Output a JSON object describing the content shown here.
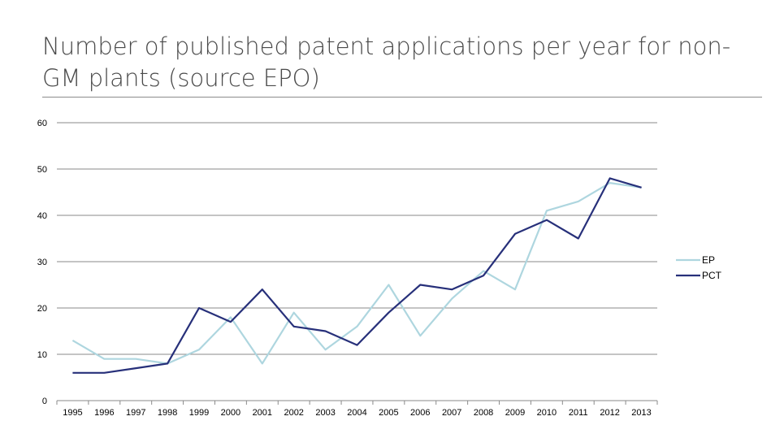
{
  "slide": {
    "title": "Number of published patent applications per year for non-GM plants (source EPO)"
  },
  "chart_data": {
    "type": "line",
    "title": "",
    "xlabel": "",
    "ylabel": "",
    "categories": [
      "1995",
      "1996",
      "1997",
      "1998",
      "1999",
      "2000",
      "2001",
      "2002",
      "2003",
      "2004",
      "2005",
      "2006",
      "2007",
      "2008",
      "2009",
      "2010",
      "2011",
      "2012",
      "2013"
    ],
    "ylim": [
      0,
      60
    ],
    "yticks": [
      0,
      10,
      20,
      30,
      40,
      50,
      60
    ],
    "grid": true,
    "legend_position": "right",
    "series": [
      {
        "name": "EP",
        "color": "#aed6df",
        "values": [
          13,
          9,
          9,
          8,
          11,
          18,
          8,
          19,
          11,
          16,
          25,
          14,
          22,
          28,
          24,
          41,
          43,
          47,
          46
        ]
      },
      {
        "name": "PCT",
        "color": "#27307a",
        "values": [
          6,
          6,
          7,
          8,
          20,
          17,
          24,
          16,
          15,
          12,
          19,
          25,
          24,
          27,
          36,
          39,
          35,
          48,
          46
        ]
      }
    ]
  }
}
